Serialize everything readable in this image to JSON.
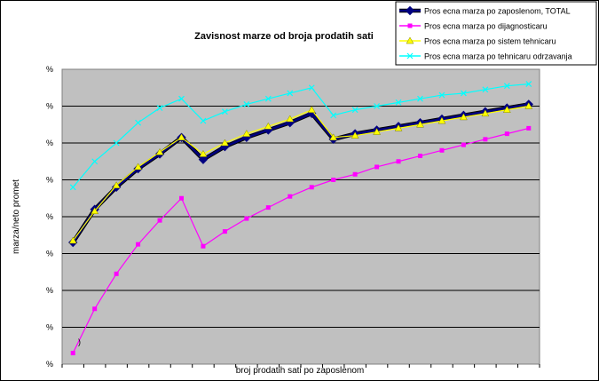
{
  "chart_data": {
    "type": "line",
    "title": "Zavisnost marze od broja prodatih sati",
    "xlabel": "broj prodatih sati po zaposlenom",
    "ylabel": "marza/neto promet",
    "ytick_labels": [
      "%",
      "%",
      "%",
      "%",
      "%",
      "%",
      "%",
      "%",
      "%"
    ],
    "ylim": [
      0,
      8
    ],
    "grid": "horizontal",
    "legend_position": "top-right",
    "annotation": ")",
    "x": [
      1,
      2,
      3,
      4,
      5,
      6,
      7,
      8,
      9,
      10,
      11,
      12,
      13,
      14,
      15,
      16,
      17,
      18,
      19,
      20,
      21,
      22
    ],
    "series": [
      {
        "name": "Pros ecna marza po zaposlenom, TOTAL",
        "color": "#000080",
        "marker": "diamond",
        "values": [
          3.3,
          4.2,
          4.8,
          5.3,
          5.7,
          6.15,
          5.55,
          5.9,
          6.15,
          6.35,
          6.55,
          6.8,
          6.1,
          6.25,
          6.35,
          6.45,
          6.55,
          6.65,
          6.75,
          6.85,
          6.95,
          7.05
        ]
      },
      {
        "name": "Pros ecna marza po dijagnosticaru",
        "color": "#ff00ff",
        "marker": "square",
        "values": [
          0.3,
          1.5,
          2.45,
          3.25,
          3.9,
          4.5,
          3.2,
          3.6,
          3.95,
          4.25,
          4.55,
          4.8,
          5.0,
          5.15,
          5.35,
          5.5,
          5.65,
          5.8,
          5.95,
          6.1,
          6.25,
          6.4
        ]
      },
      {
        "name": "Pros ecna marza po sistem tehnicaru",
        "color": "#ffff00",
        "marker": "triangle",
        "values": [
          3.35,
          4.15,
          4.85,
          5.35,
          5.75,
          6.15,
          5.7,
          6.0,
          6.25,
          6.45,
          6.65,
          6.9,
          6.15,
          6.2,
          6.3,
          6.4,
          6.5,
          6.6,
          6.7,
          6.8,
          6.9,
          7.0
        ]
      },
      {
        "name": "Pros ecna marza po tehnicaru odrzavanja",
        "color": "#00ffff",
        "marker": "x",
        "values": [
          4.8,
          5.5,
          6.0,
          6.55,
          6.95,
          7.2,
          6.6,
          6.85,
          7.05,
          7.2,
          7.35,
          7.5,
          6.75,
          6.9,
          7.0,
          7.1,
          7.2,
          7.3,
          7.35,
          7.45,
          7.55,
          7.6
        ]
      }
    ]
  }
}
